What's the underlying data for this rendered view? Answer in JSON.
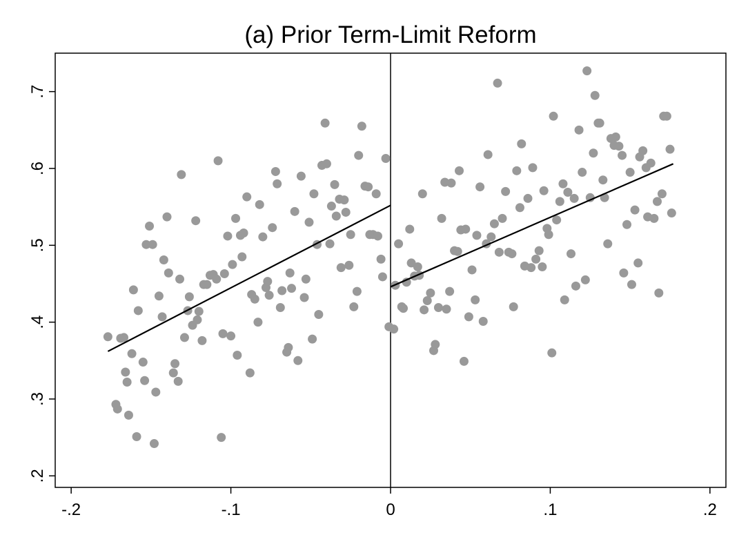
{
  "chart_data": {
    "type": "scatter",
    "title": "(a) Prior Term-Limit Reform",
    "xlabel": "",
    "ylabel": "",
    "xlim": [
      -0.21,
      0.21
    ],
    "ylim": [
      0.185,
      0.75
    ],
    "x_ticks": [
      {
        "value": -0.2,
        "label": "-.2"
      },
      {
        "value": -0.1,
        "label": "-.1"
      },
      {
        "value": 0,
        "label": "0"
      },
      {
        "value": 0.1,
        "label": ".1"
      },
      {
        "value": 0.2,
        "label": ".2"
      }
    ],
    "y_ticks": [
      {
        "value": 0.2,
        "label": ".2"
      },
      {
        "value": 0.3,
        "label": ".3"
      },
      {
        "value": 0.4,
        "label": ".4"
      },
      {
        "value": 0.5,
        "label": ".5"
      },
      {
        "value": 0.6,
        "label": ".6"
      },
      {
        "value": 0.7,
        "label": ".7"
      }
    ],
    "grid": false,
    "legend": "none",
    "cutoff": 0,
    "point_color": "#999999",
    "line_color": "#000000",
    "points": [
      [
        -0.177,
        0.381
      ],
      [
        -0.172,
        0.293
      ],
      [
        -0.171,
        0.287
      ],
      [
        -0.169,
        0.379
      ],
      [
        -0.167,
        0.38
      ],
      [
        -0.166,
        0.335
      ],
      [
        -0.165,
        0.322
      ],
      [
        -0.164,
        0.279
      ],
      [
        -0.162,
        0.359
      ],
      [
        -0.161,
        0.442
      ],
      [
        -0.159,
        0.251
      ],
      [
        -0.158,
        0.415
      ],
      [
        -0.155,
        0.348
      ],
      [
        -0.154,
        0.324
      ],
      [
        -0.153,
        0.501
      ],
      [
        -0.151,
        0.525
      ],
      [
        -0.149,
        0.501
      ],
      [
        -0.148,
        0.242
      ],
      [
        -0.147,
        0.309
      ],
      [
        -0.145,
        0.434
      ],
      [
        -0.143,
        0.407
      ],
      [
        -0.142,
        0.481
      ],
      [
        -0.14,
        0.537
      ],
      [
        -0.139,
        0.464
      ],
      [
        -0.136,
        0.334
      ],
      [
        -0.135,
        0.346
      ],
      [
        -0.133,
        0.323
      ],
      [
        -0.132,
        0.456
      ],
      [
        -0.131,
        0.592
      ],
      [
        -0.129,
        0.38
      ],
      [
        -0.127,
        0.415
      ],
      [
        -0.126,
        0.433
      ],
      [
        -0.124,
        0.396
      ],
      [
        -0.122,
        0.532
      ],
      [
        -0.121,
        0.403
      ],
      [
        -0.12,
        0.414
      ],
      [
        -0.118,
        0.376
      ],
      [
        -0.117,
        0.449
      ],
      [
        -0.115,
        0.449
      ],
      [
        -0.113,
        0.461
      ],
      [
        -0.111,
        0.462
      ],
      [
        -0.109,
        0.456
      ],
      [
        -0.108,
        0.61
      ],
      [
        -0.106,
        0.25
      ],
      [
        -0.105,
        0.385
      ],
      [
        -0.104,
        0.463
      ],
      [
        -0.102,
        0.512
      ],
      [
        -0.1,
        0.382
      ],
      [
        -0.099,
        0.475
      ],
      [
        -0.097,
        0.535
      ],
      [
        -0.096,
        0.357
      ],
      [
        -0.094,
        0.513
      ],
      [
        -0.093,
        0.485
      ],
      [
        -0.092,
        0.516
      ],
      [
        -0.09,
        0.563
      ],
      [
        -0.088,
        0.334
      ],
      [
        -0.087,
        0.436
      ],
      [
        -0.085,
        0.43
      ],
      [
        -0.083,
        0.4
      ],
      [
        -0.082,
        0.553
      ],
      [
        -0.08,
        0.511
      ],
      [
        -0.078,
        0.445
      ],
      [
        -0.077,
        0.453
      ],
      [
        -0.076,
        0.435
      ],
      [
        -0.074,
        0.523
      ],
      [
        -0.072,
        0.596
      ],
      [
        -0.071,
        0.58
      ],
      [
        -0.069,
        0.419
      ],
      [
        -0.068,
        0.441
      ],
      [
        -0.065,
        0.361
      ],
      [
        -0.064,
        0.367
      ],
      [
        -0.063,
        0.464
      ],
      [
        -0.062,
        0.444
      ],
      [
        -0.06,
        0.544
      ],
      [
        -0.058,
        0.35
      ],
      [
        -0.056,
        0.59
      ],
      [
        -0.054,
        0.432
      ],
      [
        -0.053,
        0.456
      ],
      [
        -0.051,
        0.53
      ],
      [
        -0.049,
        0.378
      ],
      [
        -0.048,
        0.567
      ],
      [
        -0.046,
        0.501
      ],
      [
        -0.045,
        0.41
      ],
      [
        -0.043,
        0.604
      ],
      [
        -0.041,
        0.659
      ],
      [
        -0.04,
        0.606
      ],
      [
        -0.038,
        0.502
      ],
      [
        -0.037,
        0.551
      ],
      [
        -0.035,
        0.579
      ],
      [
        -0.034,
        0.538
      ],
      [
        -0.032,
        0.56
      ],
      [
        -0.031,
        0.471
      ],
      [
        -0.029,
        0.559
      ],
      [
        -0.028,
        0.543
      ],
      [
        -0.026,
        0.474
      ],
      [
        -0.025,
        0.514
      ],
      [
        -0.023,
        0.42
      ],
      [
        -0.021,
        0.44
      ],
      [
        -0.02,
        0.617
      ],
      [
        -0.018,
        0.655
      ],
      [
        -0.016,
        0.577
      ],
      [
        -0.014,
        0.576
      ],
      [
        -0.013,
        0.514
      ],
      [
        -0.011,
        0.514
      ],
      [
        -0.009,
        0.567
      ],
      [
        -0.008,
        0.512
      ],
      [
        -0.006,
        0.482
      ],
      [
        -0.005,
        0.459
      ],
      [
        -0.003,
        0.613
      ],
      [
        -0.001,
        0.394
      ],
      [
        0.002,
        0.391
      ],
      [
        0.003,
        0.448
      ],
      [
        0.005,
        0.502
      ],
      [
        0.007,
        0.42
      ],
      [
        0.008,
        0.418
      ],
      [
        0.01,
        0.452
      ],
      [
        0.012,
        0.521
      ],
      [
        0.013,
        0.477
      ],
      [
        0.015,
        0.46
      ],
      [
        0.017,
        0.472
      ],
      [
        0.018,
        0.461
      ],
      [
        0.02,
        0.567
      ],
      [
        0.021,
        0.416
      ],
      [
        0.023,
        0.428
      ],
      [
        0.025,
        0.438
      ],
      [
        0.027,
        0.363
      ],
      [
        0.028,
        0.371
      ],
      [
        0.03,
        0.419
      ],
      [
        0.032,
        0.535
      ],
      [
        0.034,
        0.582
      ],
      [
        0.035,
        0.417
      ],
      [
        0.037,
        0.44
      ],
      [
        0.038,
        0.581
      ],
      [
        0.04,
        0.493
      ],
      [
        0.042,
        0.492
      ],
      [
        0.043,
        0.597
      ],
      [
        0.044,
        0.52
      ],
      [
        0.046,
        0.349
      ],
      [
        0.047,
        0.521
      ],
      [
        0.049,
        0.407
      ],
      [
        0.051,
        0.468
      ],
      [
        0.053,
        0.429
      ],
      [
        0.054,
        0.513
      ],
      [
        0.056,
        0.576
      ],
      [
        0.058,
        0.401
      ],
      [
        0.06,
        0.502
      ],
      [
        0.061,
        0.618
      ],
      [
        0.063,
        0.511
      ],
      [
        0.065,
        0.528
      ],
      [
        0.067,
        0.711
      ],
      [
        0.068,
        0.491
      ],
      [
        0.07,
        0.535
      ],
      [
        0.072,
        0.57
      ],
      [
        0.074,
        0.491
      ],
      [
        0.076,
        0.489
      ],
      [
        0.077,
        0.42
      ],
      [
        0.079,
        0.597
      ],
      [
        0.081,
        0.549
      ],
      [
        0.082,
        0.632
      ],
      [
        0.084,
        0.473
      ],
      [
        0.086,
        0.561
      ],
      [
        0.088,
        0.471
      ],
      [
        0.089,
        0.601
      ],
      [
        0.091,
        0.482
      ],
      [
        0.093,
        0.493
      ],
      [
        0.095,
        0.472
      ],
      [
        0.096,
        0.571
      ],
      [
        0.098,
        0.522
      ],
      [
        0.099,
        0.514
      ],
      [
        0.101,
        0.36
      ],
      [
        0.102,
        0.668
      ],
      [
        0.104,
        0.533
      ],
      [
        0.106,
        0.557
      ],
      [
        0.108,
        0.58
      ],
      [
        0.109,
        0.429
      ],
      [
        0.111,
        0.569
      ],
      [
        0.113,
        0.489
      ],
      [
        0.115,
        0.561
      ],
      [
        0.116,
        0.447
      ],
      [
        0.118,
        0.65
      ],
      [
        0.12,
        0.595
      ],
      [
        0.122,
        0.455
      ],
      [
        0.123,
        0.727
      ],
      [
        0.125,
        0.562
      ],
      [
        0.127,
        0.62
      ],
      [
        0.128,
        0.695
      ],
      [
        0.13,
        0.659
      ],
      [
        0.131,
        0.659
      ],
      [
        0.133,
        0.585
      ],
      [
        0.134,
        0.562
      ],
      [
        0.136,
        0.502
      ],
      [
        0.138,
        0.639
      ],
      [
        0.14,
        0.63
      ],
      [
        0.141,
        0.641
      ],
      [
        0.143,
        0.629
      ],
      [
        0.145,
        0.617
      ],
      [
        0.146,
        0.464
      ],
      [
        0.148,
        0.527
      ],
      [
        0.15,
        0.595
      ],
      [
        0.151,
        0.449
      ],
      [
        0.153,
        0.546
      ],
      [
        0.155,
        0.477
      ],
      [
        0.156,
        0.615
      ],
      [
        0.158,
        0.623
      ],
      [
        0.16,
        0.601
      ],
      [
        0.161,
        0.537
      ],
      [
        0.163,
        0.607
      ],
      [
        0.165,
        0.535
      ],
      [
        0.167,
        0.557
      ],
      [
        0.168,
        0.438
      ],
      [
        0.17,
        0.567
      ],
      [
        0.171,
        0.668
      ],
      [
        0.173,
        0.668
      ],
      [
        0.175,
        0.625
      ],
      [
        0.176,
        0.542
      ]
    ],
    "fit_lines": [
      {
        "segment": "left",
        "x": [
          -0.177,
          0
        ],
        "y": [
          0.362,
          0.552
        ]
      },
      {
        "segment": "right",
        "x": [
          0,
          0.177
        ],
        "y": [
          0.446,
          0.606
        ]
      }
    ]
  }
}
